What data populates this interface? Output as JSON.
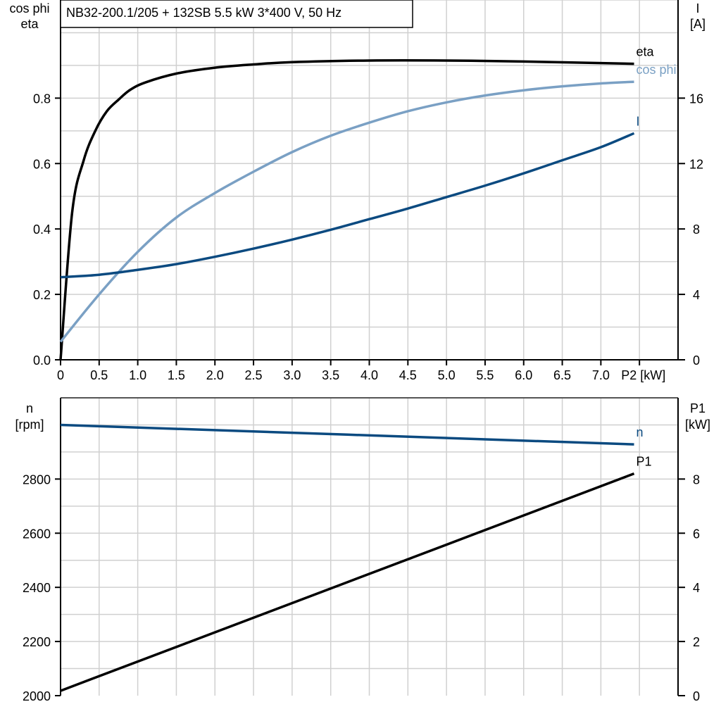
{
  "chart_data": [
    {
      "type": "line",
      "title": "NB32-200.1/205 + 132SB   5.5 kW   3*400 V, 50 Hz",
      "xlabel": "P2 [kW]",
      "ylabel_left": [
        "cos phi",
        "eta"
      ],
      "ylabel_right": [
        "I",
        "[A]"
      ],
      "xlim": [
        0,
        8
      ],
      "ylim_left": [
        0,
        1.1
      ],
      "ylim_right": [
        0,
        22
      ],
      "x_ticks": [
        "0",
        "0.5",
        "1.0",
        "1.5",
        "2.0",
        "2.5",
        "3.0",
        "3.5",
        "4.0",
        "4.5",
        "5.0",
        "5.5",
        "6.0",
        "6.5",
        "7.0"
      ],
      "y_ticks_left": [
        "0.0",
        "0.2",
        "0.4",
        "0.6",
        "0.8"
      ],
      "y_ticks_right": [
        "0",
        "4",
        "8",
        "12",
        "16"
      ],
      "grid": true,
      "series": [
        {
          "name": "eta",
          "axis": "left",
          "color": "#000000",
          "x": [
            0,
            0.15,
            0.3,
            0.45,
            0.6,
            0.75,
            0.9,
            1.1,
            1.5,
            2.0,
            2.5,
            3.0,
            4.0,
            5.0,
            6.0,
            7.43
          ],
          "y": [
            0.0,
            0.45,
            0.61,
            0.7,
            0.76,
            0.795,
            0.825,
            0.848,
            0.875,
            0.893,
            0.903,
            0.91,
            0.915,
            0.915,
            0.912,
            0.905
          ]
        },
        {
          "name": "cos phi",
          "axis": "left",
          "color": "#7aa0c4",
          "x": [
            0,
            0.5,
            1.0,
            1.5,
            2.0,
            2.5,
            3.0,
            3.5,
            4.0,
            4.5,
            5.0,
            5.5,
            6.0,
            6.5,
            7.0,
            7.43
          ],
          "y": [
            0.055,
            0.2,
            0.33,
            0.435,
            0.51,
            0.575,
            0.635,
            0.685,
            0.725,
            0.76,
            0.787,
            0.808,
            0.824,
            0.836,
            0.845,
            0.85
          ]
        },
        {
          "name": "I",
          "axis": "right",
          "color": "#0b4a80",
          "x": [
            0,
            0.5,
            1.0,
            1.5,
            2.0,
            2.5,
            3.0,
            3.5,
            4.0,
            4.5,
            5.0,
            5.5,
            6.0,
            6.5,
            7.0,
            7.43
          ],
          "y": [
            5.05,
            5.2,
            5.5,
            5.85,
            6.3,
            6.8,
            7.35,
            7.95,
            8.6,
            9.25,
            9.95,
            10.65,
            11.4,
            12.2,
            13.0,
            13.85
          ]
        }
      ]
    },
    {
      "type": "line",
      "xlim": [
        0,
        8
      ],
      "ylabel_left": [
        "n",
        "[rpm]"
      ],
      "ylabel_right": [
        "P1",
        "[kW]"
      ],
      "ylim_left": [
        2000,
        3100
      ],
      "ylim_right": [
        0,
        11
      ],
      "y_ticks_left": [
        "2000",
        "2200",
        "2400",
        "2600",
        "2800"
      ],
      "y_ticks_right": [
        "0",
        "2",
        "4",
        "6",
        "8"
      ],
      "grid": true,
      "series": [
        {
          "name": "n",
          "axis": "left",
          "color": "#0b4a80",
          "x": [
            0,
            7.43
          ],
          "y": [
            3000,
            2928
          ]
        },
        {
          "name": "P1",
          "axis": "right",
          "color": "#000000",
          "x": [
            0,
            7.43
          ],
          "y": [
            0.18,
            8.2
          ]
        }
      ]
    }
  ]
}
